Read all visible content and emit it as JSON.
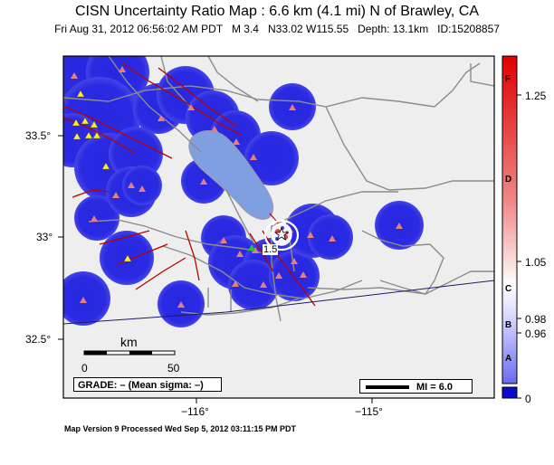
{
  "title": "CISN Uncertainty Ratio Map : 6.6 km (4.1 mi) N of Brawley, CA",
  "subtitle": "Fri Aug 31, 2012 06:56:02 AM PDT   M 3.4   N33.02 W115.55   Depth: 13.1km   ID:15208857",
  "lat_labels": [
    "33.5°",
    "33°",
    "32.5°"
  ],
  "lon_labels": [
    "−116°",
    "−115°"
  ],
  "scale": {
    "title": "km",
    "left": "0",
    "right": "50"
  },
  "grade_text": "GRADE: – (Mean sigma: –)",
  "mi_text": "MI = 6.0",
  "contour_labels": [
    "1.5",
    "3"
  ],
  "footer": "Map Version 9 Processed Wed Sep  5, 2012 03:11:15 PM PDT",
  "colorbar": {
    "values": [
      "1.25",
      "1.05",
      "0.98",
      "0.96",
      "0"
    ],
    "grades": [
      "F",
      "D",
      "C",
      "B",
      "A"
    ]
  },
  "colors": {
    "uncertainty_blue": "#2222dd",
    "background_gray": "#eeeeef",
    "lake": "#7f9fe0",
    "fault": "#bb0000",
    "road": "#8c8c8c"
  }
}
